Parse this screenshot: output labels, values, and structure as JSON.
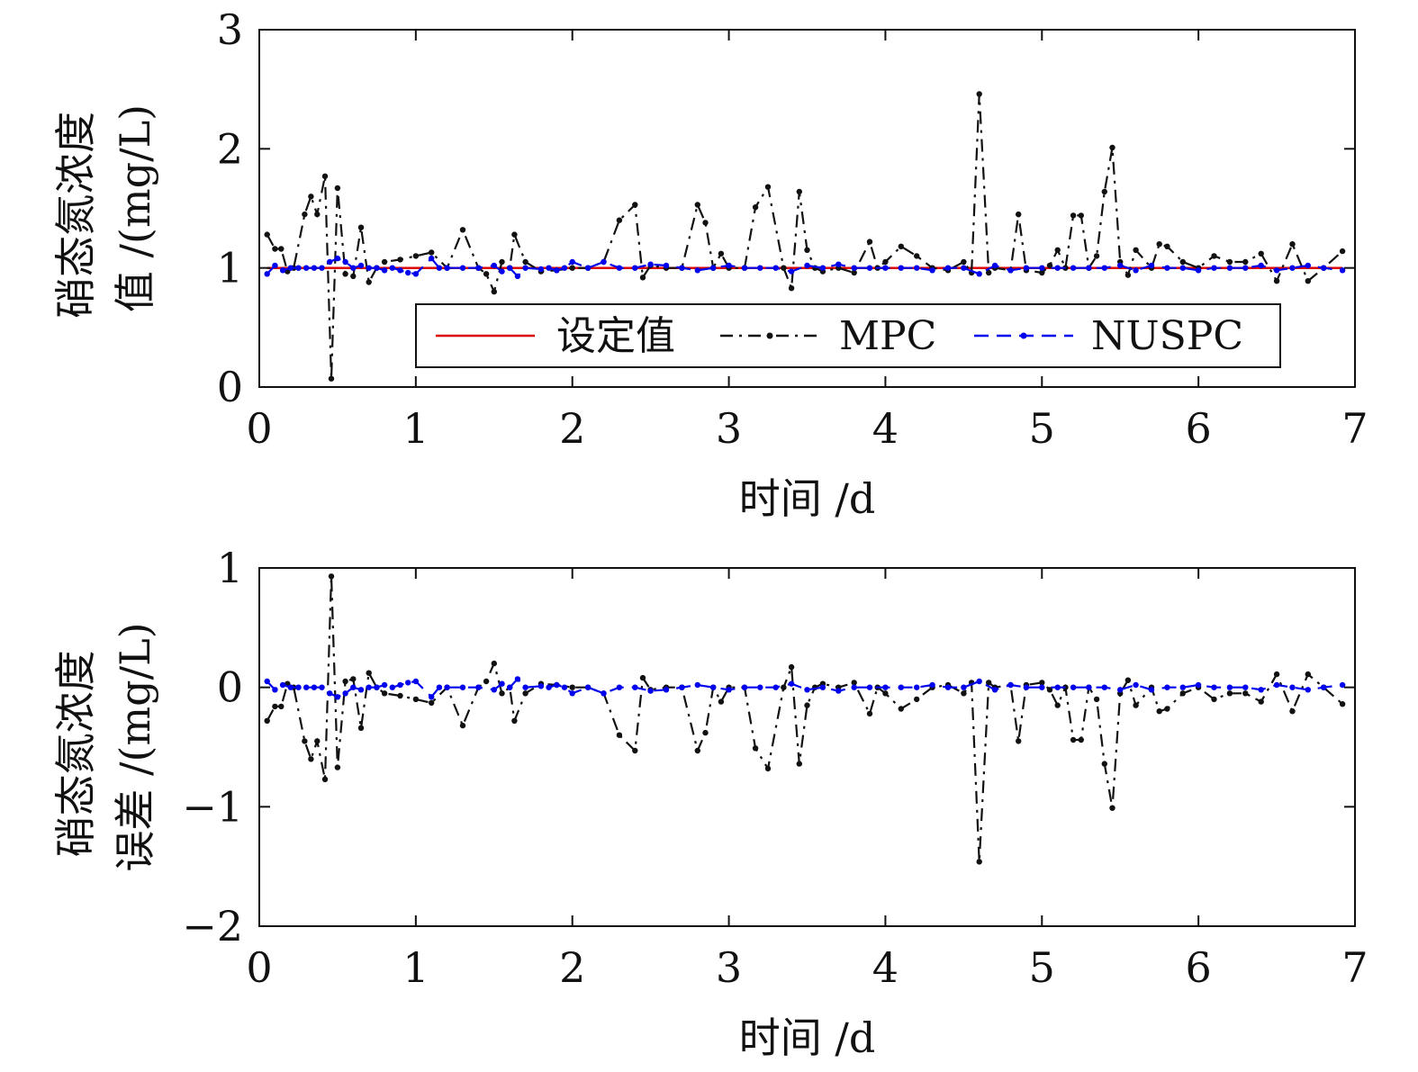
{
  "colors": {
    "setpoint": "#dd0000",
    "mpc": "#111111",
    "nuspc": "#0000ee",
    "axis": "#111111"
  },
  "chart_data": [
    {
      "type": "line",
      "xlabel": "时间 /d",
      "ylabel_lines": [
        "硝态氮浓度",
        "值 /(mg/L)"
      ],
      "xlim": [
        0,
        7
      ],
      "ylim": [
        0,
        3
      ],
      "xticks": [
        "0",
        "1",
        "2",
        "3",
        "4",
        "5",
        "6",
        "7"
      ],
      "yticks": [
        "0",
        "1",
        "2",
        "3"
      ],
      "legend": {
        "placement": "bottom-right",
        "entries": [
          "设定值",
          "MPC",
          "NUSPC"
        ]
      },
      "series": [
        {
          "name": "设定值",
          "style": "solid",
          "x": [
            0.05,
            6.92
          ],
          "y": [
            1.0,
            1.0
          ]
        },
        {
          "name": "MPC",
          "style": "dashdot",
          "x": [
            0.05,
            0.1,
            0.14,
            0.18,
            0.22,
            0.29,
            0.33,
            0.37,
            0.42,
            0.46,
            0.5,
            0.55,
            0.6,
            0.65,
            0.7,
            0.75,
            0.8,
            0.9,
            1.0,
            1.1,
            1.2,
            1.3,
            1.4,
            1.45,
            1.5,
            1.55,
            1.6,
            1.63,
            1.7,
            1.8,
            1.9,
            2.0,
            2.1,
            2.2,
            2.3,
            2.4,
            2.45,
            2.5,
            2.6,
            2.7,
            2.8,
            2.85,
            2.9,
            2.95,
            3.0,
            3.1,
            3.17,
            3.25,
            3.35,
            3.4,
            3.45,
            3.5,
            3.55,
            3.6,
            3.7,
            3.8,
            3.9,
            3.95,
            4.0,
            4.1,
            4.2,
            4.3,
            4.4,
            4.5,
            4.55,
            4.6,
            4.66,
            4.7,
            4.8,
            4.85,
            4.9,
            5.0,
            5.05,
            5.1,
            5.15,
            5.2,
            5.25,
            5.3,
            5.35,
            5.4,
            5.45,
            5.5,
            5.55,
            5.6,
            5.7,
            5.75,
            5.8,
            5.9,
            6.0,
            6.1,
            6.2,
            6.3,
            6.4,
            6.5,
            6.6,
            6.7,
            6.8,
            6.92
          ],
          "y": [
            1.28,
            1.16,
            1.16,
            0.97,
            1.0,
            1.45,
            1.6,
            1.45,
            1.77,
            0.07,
            1.67,
            0.95,
            0.93,
            1.34,
            0.88,
            1.0,
            1.05,
            1.07,
            1.1,
            1.13,
            1.0,
            1.32,
            1.0,
            0.95,
            0.8,
            1.05,
            1.0,
            1.28,
            1.05,
            0.97,
            0.98,
            1.0,
            1.0,
            1.05,
            1.4,
            1.53,
            0.92,
            1.02,
            1.0,
            1.0,
            1.53,
            1.38,
            1.0,
            1.12,
            1.0,
            1.0,
            1.51,
            1.68,
            1.0,
            0.83,
            1.64,
            1.15,
            1.0,
            0.97,
            1.0,
            0.96,
            1.22,
            1.0,
            1.05,
            1.18,
            1.1,
            1.0,
            0.98,
            1.05,
            0.96,
            2.46,
            0.96,
            1.0,
            0.98,
            1.45,
            0.98,
            0.96,
            1.02,
            1.15,
            1.0,
            1.44,
            1.44,
            1.0,
            1.1,
            1.64,
            2.01,
            1.05,
            0.94,
            1.15,
            1.0,
            1.2,
            1.18,
            1.05,
            1.0,
            1.1,
            1.05,
            1.05,
            1.12,
            0.89,
            1.2,
            0.89,
            1.0,
            1.14
          ]
        },
        {
          "name": "NUSPC",
          "style": "dashed",
          "x": [
            0.05,
            0.1,
            0.15,
            0.2,
            0.25,
            0.3,
            0.35,
            0.4,
            0.45,
            0.5,
            0.55,
            0.6,
            0.65,
            0.7,
            0.75,
            0.8,
            0.85,
            0.9,
            0.95,
            1.0,
            1.1,
            1.15,
            1.2,
            1.3,
            1.4,
            1.5,
            1.55,
            1.6,
            1.65,
            1.7,
            1.8,
            1.85,
            1.9,
            1.95,
            2.0,
            2.1,
            2.2,
            2.3,
            2.4,
            2.5,
            2.6,
            2.7,
            2.8,
            2.9,
            3.0,
            3.1,
            3.2,
            3.3,
            3.4,
            3.5,
            3.6,
            3.7,
            3.8,
            3.9,
            4.0,
            4.1,
            4.2,
            4.3,
            4.4,
            4.5,
            4.6,
            4.7,
            4.8,
            4.9,
            5.0,
            5.1,
            5.2,
            5.3,
            5.4,
            5.5,
            5.6,
            5.7,
            5.8,
            5.9,
            6.0,
            6.1,
            6.2,
            6.3,
            6.4,
            6.5,
            6.6,
            6.7,
            6.8,
            6.92
          ],
          "y": [
            0.95,
            1.02,
            0.98,
            1.0,
            1.0,
            1.0,
            1.0,
            1.0,
            1.05,
            1.08,
            1.05,
            1.0,
            1.02,
            1.0,
            1.0,
            0.98,
            1.0,
            0.98,
            0.96,
            0.95,
            1.08,
            1.0,
            1.0,
            1.0,
            1.0,
            1.02,
            0.97,
            1.0,
            0.93,
            1.0,
            0.99,
            1.0,
            0.98,
            1.0,
            1.05,
            1.0,
            1.05,
            1.0,
            1.0,
            1.03,
            1.02,
            1.0,
            0.98,
            1.0,
            1.02,
            1.0,
            1.0,
            1.0,
            0.97,
            1.02,
            1.0,
            1.03,
            1.0,
            1.0,
            1.0,
            1.0,
            1.0,
            0.98,
            1.0,
            1.0,
            0.95,
            1.02,
            0.98,
            1.0,
            1.0,
            1.0,
            1.0,
            1.0,
            1.0,
            1.02,
            0.98,
            1.02,
            1.0,
            1.0,
            0.98,
            1.0,
            1.0,
            1.0,
            1.02,
            0.98,
            1.0,
            1.02,
            1.0,
            0.98
          ]
        }
      ]
    },
    {
      "type": "line",
      "xlabel": "时间 /d",
      "ylabel_lines": [
        "硝态氮浓度",
        "误差 /(mg/L)"
      ],
      "xlim": [
        0,
        7
      ],
      "ylim": [
        -2,
        1
      ],
      "xticks": [
        "0",
        "1",
        "2",
        "3",
        "4",
        "5",
        "6",
        "7"
      ],
      "yticks": [
        "−2",
        "−1",
        "0",
        "1"
      ],
      "series": [
        {
          "name": "MPC",
          "style": "dashdot",
          "x": [
            0.05,
            0.1,
            0.14,
            0.18,
            0.22,
            0.29,
            0.33,
            0.37,
            0.42,
            0.46,
            0.5,
            0.55,
            0.6,
            0.65,
            0.7,
            0.75,
            0.8,
            0.9,
            1.0,
            1.1,
            1.2,
            1.3,
            1.4,
            1.45,
            1.5,
            1.55,
            1.6,
            1.63,
            1.7,
            1.8,
            1.9,
            2.0,
            2.1,
            2.2,
            2.3,
            2.4,
            2.45,
            2.5,
            2.6,
            2.7,
            2.8,
            2.85,
            2.9,
            2.95,
            3.0,
            3.1,
            3.17,
            3.25,
            3.35,
            3.4,
            3.45,
            3.5,
            3.55,
            3.6,
            3.7,
            3.8,
            3.9,
            3.95,
            4.0,
            4.1,
            4.2,
            4.3,
            4.4,
            4.5,
            4.55,
            4.6,
            4.66,
            4.7,
            4.8,
            4.85,
            4.9,
            5.0,
            5.05,
            5.1,
            5.15,
            5.2,
            5.25,
            5.3,
            5.35,
            5.4,
            5.45,
            5.5,
            5.55,
            5.6,
            5.7,
            5.75,
            5.8,
            5.9,
            6.0,
            6.1,
            6.2,
            6.3,
            6.4,
            6.5,
            6.6,
            6.7,
            6.8,
            6.92
          ],
          "y": [
            -0.28,
            -0.16,
            -0.16,
            0.03,
            0.0,
            -0.45,
            -0.6,
            -0.45,
            -0.77,
            0.93,
            -0.67,
            0.05,
            0.07,
            -0.34,
            0.12,
            0.0,
            -0.05,
            -0.07,
            -0.1,
            -0.13,
            0.0,
            -0.32,
            0.0,
            0.05,
            0.2,
            -0.05,
            0.0,
            -0.28,
            -0.05,
            0.03,
            0.02,
            0.0,
            0.0,
            -0.05,
            -0.4,
            -0.53,
            0.08,
            -0.02,
            0.0,
            0.0,
            -0.53,
            -0.38,
            0.0,
            -0.12,
            0.0,
            0.0,
            -0.51,
            -0.68,
            0.0,
            0.17,
            -0.64,
            -0.15,
            0.0,
            0.03,
            0.0,
            0.04,
            -0.22,
            0.0,
            -0.05,
            -0.18,
            -0.1,
            0.0,
            0.02,
            -0.05,
            0.04,
            -1.46,
            0.04,
            0.0,
            0.02,
            -0.45,
            0.02,
            0.04,
            -0.02,
            -0.15,
            0.0,
            -0.44,
            -0.44,
            0.0,
            -0.1,
            -0.64,
            -1.01,
            -0.05,
            0.06,
            -0.15,
            0.0,
            -0.2,
            -0.18,
            -0.05,
            0.0,
            -0.1,
            -0.05,
            -0.05,
            -0.12,
            0.11,
            -0.2,
            0.11,
            0.0,
            -0.14
          ]
        },
        {
          "name": "NUSPC",
          "style": "dashed",
          "x": [
            0.05,
            0.1,
            0.15,
            0.2,
            0.25,
            0.3,
            0.35,
            0.4,
            0.45,
            0.5,
            0.55,
            0.6,
            0.65,
            0.7,
            0.75,
            0.8,
            0.85,
            0.9,
            0.95,
            1.0,
            1.1,
            1.15,
            1.2,
            1.3,
            1.4,
            1.5,
            1.55,
            1.6,
            1.65,
            1.7,
            1.8,
            1.85,
            1.9,
            1.95,
            2.0,
            2.1,
            2.2,
            2.3,
            2.4,
            2.5,
            2.6,
            2.7,
            2.8,
            2.9,
            3.0,
            3.1,
            3.2,
            3.3,
            3.4,
            3.5,
            3.6,
            3.7,
            3.8,
            3.9,
            4.0,
            4.1,
            4.2,
            4.3,
            4.4,
            4.5,
            4.6,
            4.7,
            4.8,
            4.9,
            5.0,
            5.1,
            5.2,
            5.3,
            5.4,
            5.5,
            5.6,
            5.7,
            5.8,
            5.9,
            6.0,
            6.1,
            6.2,
            6.3,
            6.4,
            6.5,
            6.6,
            6.7,
            6.8,
            6.92
          ],
          "y": [
            0.05,
            -0.02,
            0.02,
            0.0,
            0.0,
            0.0,
            0.0,
            0.0,
            -0.05,
            -0.08,
            -0.05,
            0.0,
            -0.02,
            0.0,
            0.0,
            0.02,
            0.0,
            0.02,
            0.04,
            0.05,
            -0.08,
            0.0,
            0.0,
            0.0,
            0.0,
            -0.02,
            0.03,
            0.0,
            0.07,
            0.0,
            0.01,
            0.0,
            0.02,
            0.0,
            -0.05,
            0.0,
            -0.05,
            0.0,
            0.0,
            -0.03,
            -0.02,
            0.0,
            0.02,
            0.0,
            -0.02,
            0.0,
            0.0,
            0.0,
            0.03,
            -0.02,
            0.0,
            -0.03,
            0.0,
            0.0,
            0.0,
            0.0,
            0.0,
            0.02,
            0.0,
            0.0,
            0.05,
            -0.02,
            0.02,
            0.0,
            0.0,
            0.0,
            0.0,
            0.0,
            0.0,
            -0.02,
            0.02,
            -0.02,
            0.0,
            0.0,
            0.02,
            0.0,
            0.0,
            0.0,
            -0.02,
            0.02,
            0.0,
            -0.02,
            0.0,
            0.02
          ]
        }
      ]
    }
  ]
}
